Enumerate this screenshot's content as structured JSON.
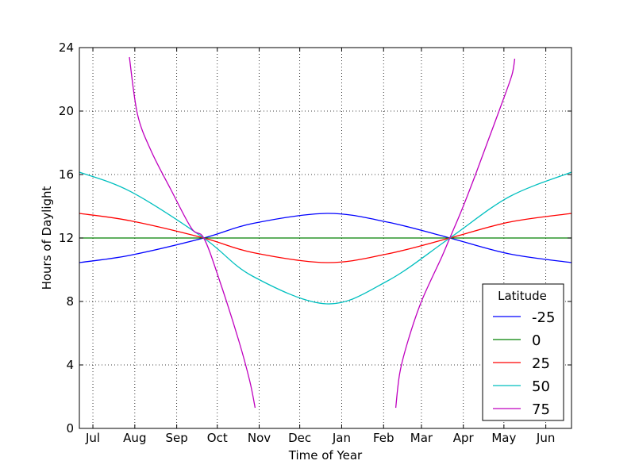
{
  "chart_data": {
    "type": "line",
    "title": "",
    "xlabel": "Time of Year",
    "ylabel": "Hours of Daylight",
    "x_unit": "day of year (Jan 1 = 0)",
    "xlim": [
      172,
      536
    ],
    "ylim": [
      0,
      24
    ],
    "y_ticks": [
      0,
      4,
      8,
      12,
      16,
      20,
      24
    ],
    "x_ticks": [
      {
        "value": 182,
        "label": "Jul"
      },
      {
        "value": 213,
        "label": "Aug"
      },
      {
        "value": 244,
        "label": "Sep"
      },
      {
        "value": 274,
        "label": "Oct"
      },
      {
        "value": 305,
        "label": "Nov"
      },
      {
        "value": 335,
        "label": "Dec"
      },
      {
        "value": 366,
        "label": "Jan"
      },
      {
        "value": 397,
        "label": "Feb"
      },
      {
        "value": 425,
        "label": "Mar"
      },
      {
        "value": 456,
        "label": "Apr"
      },
      {
        "value": 486,
        "label": "May"
      },
      {
        "value": 517,
        "label": "Jun"
      }
    ],
    "grid": true,
    "legend": {
      "title": "Latitude",
      "placement": "lower-right"
    },
    "series": [
      {
        "name": "-25",
        "color": "#0000ff",
        "x": [
          172,
          210,
          264,
          300,
          355,
          400,
          446,
          490,
          536
        ],
        "y": [
          10.45,
          10.92,
          12.0,
          12.91,
          13.55,
          13.0,
          12.0,
          11.0,
          10.45
        ]
      },
      {
        "name": "0",
        "color": "#008000",
        "x": [
          172,
          536
        ],
        "y": [
          12.0,
          12.0
        ]
      },
      {
        "name": "25",
        "color": "#ff0000",
        "x": [
          172,
          210,
          264,
          300,
          355,
          400,
          446,
          490,
          536
        ],
        "y": [
          13.55,
          13.08,
          12.0,
          11.09,
          10.45,
          11.0,
          12.0,
          13.0,
          13.55
        ]
      },
      {
        "name": "50",
        "color": "#00bfbf",
        "x": [
          172,
          210,
          264,
          300,
          355,
          400,
          446,
          490,
          536
        ],
        "y": [
          16.15,
          14.92,
          12.0,
          9.6,
          7.85,
          9.3,
          12.0,
          14.6,
          16.15
        ]
      },
      {
        "name": "75",
        "color": "#bf00bf",
        "segments": [
          {
            "x": [
              209,
              215,
              225,
              240,
              255,
              264,
              275,
              290,
              298,
              302
            ],
            "y": [
              23.4,
              19.8,
              17.5,
              15.0,
              12.6,
              12.0,
              9.5,
              5.5,
              3.0,
              1.3
            ]
          },
          {
            "x": [
              406,
              409,
              415,
              425,
              440,
              446,
              455,
              465,
              475,
              485,
              492,
              494
            ],
            "y": [
              1.3,
              3.5,
              5.5,
              8.0,
              10.8,
              12.0,
              13.8,
              16.0,
              18.3,
              20.6,
              22.3,
              23.3
            ]
          }
        ]
      }
    ]
  }
}
